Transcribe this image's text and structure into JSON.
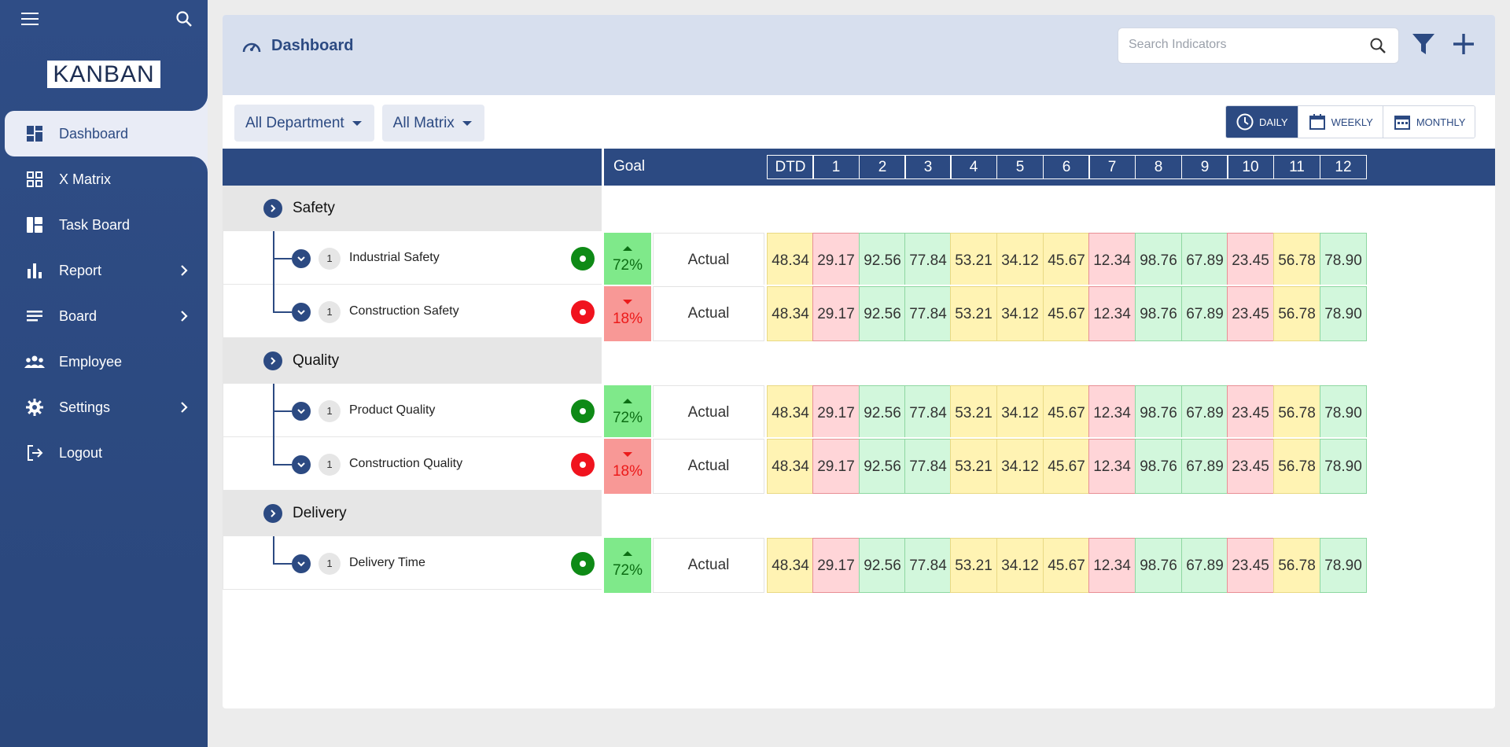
{
  "app": {
    "logo": "KANBAN"
  },
  "sidebar": {
    "items": [
      {
        "label": "Dashboard",
        "icon": "dashboard-icon",
        "active": true,
        "has_submenu": false
      },
      {
        "label": "X Matrix",
        "icon": "grid-icon",
        "active": false,
        "has_submenu": false
      },
      {
        "label": "Task Board",
        "icon": "board-icon",
        "active": false,
        "has_submenu": false
      },
      {
        "label": "Report",
        "icon": "bar-chart-icon",
        "active": false,
        "has_submenu": true
      },
      {
        "label": "Board",
        "icon": "list-icon",
        "active": false,
        "has_submenu": true
      },
      {
        "label": "Employee",
        "icon": "people-icon",
        "active": false,
        "has_submenu": false
      },
      {
        "label": "Settings",
        "icon": "gear-icon",
        "active": false,
        "has_submenu": true
      },
      {
        "label": "Logout",
        "icon": "logout-icon",
        "active": false,
        "has_submenu": false
      }
    ]
  },
  "header": {
    "title": "Dashboard",
    "search_placeholder": "Search Indicators"
  },
  "filters": {
    "department": "All Department",
    "matrix": "All Matrix"
  },
  "period": {
    "daily": "DAILY",
    "weekly": "WEEKLY",
    "monthly": "MONTHLY",
    "selected": "DAILY"
  },
  "grid": {
    "goal_header": "Goal",
    "columns": [
      "DTD",
      "1",
      "2",
      "3",
      "4",
      "5",
      "6",
      "7",
      "8",
      "9",
      "10",
      "11",
      "12"
    ]
  },
  "categories": [
    {
      "name": "Safety",
      "indicators": [
        {
          "name": "Industrial Safety",
          "count": "1",
          "status": "green",
          "goal": "72%",
          "trend": "up",
          "actual_label": "Actual",
          "values": [
            "48.34",
            "29.17",
            "92.56",
            "77.84",
            "53.21",
            "34.12",
            "45.67",
            "12.34",
            "98.76",
            "67.89",
            "23.45",
            "56.78",
            "78.90"
          ]
        },
        {
          "name": "Construction Safety",
          "count": "1",
          "status": "red",
          "goal": "18%",
          "trend": "down",
          "actual_label": "Actual",
          "values": [
            "48.34",
            "29.17",
            "92.56",
            "77.84",
            "53.21",
            "34.12",
            "45.67",
            "12.34",
            "98.76",
            "67.89",
            "23.45",
            "56.78",
            "78.90"
          ]
        }
      ]
    },
    {
      "name": "Quality",
      "indicators": [
        {
          "name": "Product Quality",
          "count": "1",
          "status": "green",
          "goal": "72%",
          "trend": "up",
          "actual_label": "Actual",
          "values": [
            "48.34",
            "29.17",
            "92.56",
            "77.84",
            "53.21",
            "34.12",
            "45.67",
            "12.34",
            "98.76",
            "67.89",
            "23.45",
            "56.78",
            "78.90"
          ]
        },
        {
          "name": "Construction Quality",
          "count": "1",
          "status": "red",
          "goal": "18%",
          "trend": "down",
          "actual_label": "Actual",
          "values": [
            "48.34",
            "29.17",
            "92.56",
            "77.84",
            "53.21",
            "34.12",
            "45.67",
            "12.34",
            "98.76",
            "67.89",
            "23.45",
            "56.78",
            "78.90"
          ]
        }
      ]
    },
    {
      "name": "Delivery",
      "indicators": [
        {
          "name": "Delivery Time",
          "count": "1",
          "status": "green",
          "goal": "72%",
          "trend": "up",
          "actual_label": "Actual",
          "values": [
            "48.34",
            "29.17",
            "92.56",
            "77.84",
            "53.21",
            "34.12",
            "45.67",
            "12.34",
            "98.76",
            "67.89",
            "23.45",
            "56.78",
            "78.90"
          ]
        }
      ]
    }
  ],
  "cell_colors": {
    "pattern": [
      "yellow",
      "red",
      "green",
      "green",
      "yellow",
      "yellow",
      "yellow",
      "red",
      "green",
      "green",
      "red",
      "yellow",
      "green"
    ],
    "yellow": "#fff3b3",
    "red": "#ffd5d8",
    "green": "#d2f7dc"
  },
  "colors": {
    "brand": "#2c4a82",
    "status_green": "#0e8a16",
    "status_red": "#f0131e"
  }
}
